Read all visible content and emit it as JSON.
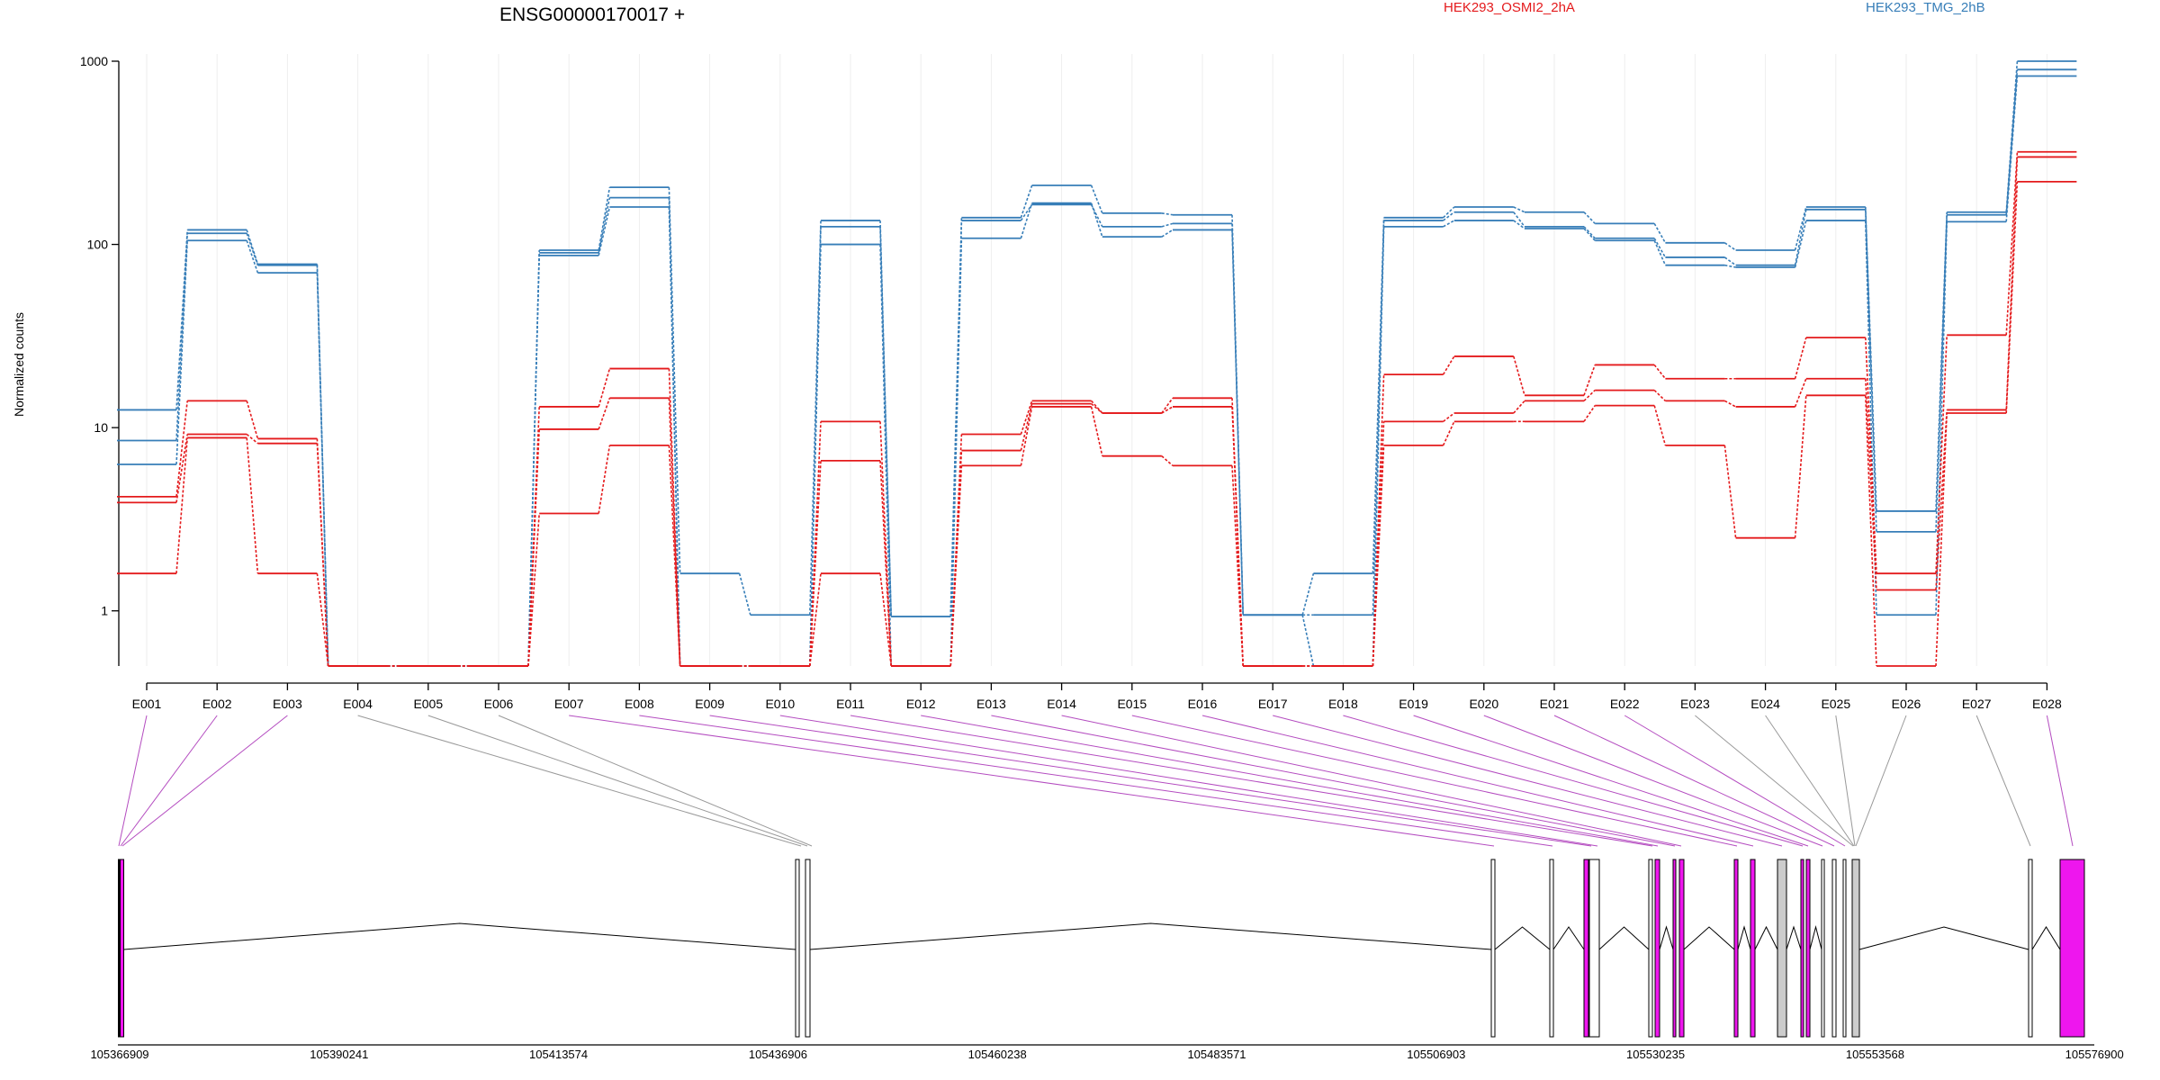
{
  "chart_data": {
    "type": "line",
    "title": "ENSG00000170017 +",
    "ylabel": "Normalized counts",
    "y_scale": "log",
    "ylim": [
      0.5,
      1000
    ],
    "y_ticks": [
      "1",
      "10",
      "100",
      "1000"
    ],
    "categories": [
      "E001",
      "E002",
      "E003",
      "E004",
      "E005",
      "E006",
      "E007",
      "E008",
      "E009",
      "E010",
      "E011",
      "E012",
      "E013",
      "E014",
      "E015",
      "E016",
      "E017",
      "E018",
      "E019",
      "E020",
      "E021",
      "E022",
      "E023",
      "E024",
      "E025",
      "E026",
      "E027",
      "E028"
    ],
    "legend": [
      {
        "name": "HEK293_OSMI2_2hA",
        "color": "#e41a1c"
      },
      {
        "name": "HEK293_TMG_2hB",
        "color": "#377eb8"
      }
    ],
    "series": [
      {
        "group": "HEK293_TMG_2hB",
        "color": "#377eb8",
        "values": [
          12.5,
          120,
          78,
          0.5,
          0.5,
          0.5,
          93,
          205,
          1.6,
          0.95,
          135,
          0.93,
          140,
          210,
          148,
          145,
          0.95,
          1.6,
          140,
          160,
          150,
          130,
          102,
          93,
          160,
          3.5,
          150,
          1000
        ]
      },
      {
        "group": "HEK293_TMG_2hB",
        "color": "#377eb8",
        "values": [
          8.5,
          115,
          77,
          0.5,
          0.5,
          0.5,
          90,
          180,
          0.5,
          0.5,
          125,
          0.93,
          135,
          165,
          125,
          130,
          0.95,
          0.95,
          135,
          150,
          125,
          108,
          85,
          77,
          155,
          2.7,
          145,
          900
        ]
      },
      {
        "group": "HEK293_TMG_2hB",
        "color": "#377eb8",
        "values": [
          6.3,
          105,
          70,
          0.5,
          0.5,
          0.5,
          87,
          160,
          0.5,
          0.5,
          100,
          0.5,
          108,
          168,
          110,
          120,
          0.95,
          0.5,
          125,
          135,
          122,
          105,
          77,
          75,
          135,
          0.95,
          133,
          830
        ]
      },
      {
        "group": "HEK293_OSMI2_2hA",
        "color": "#e41a1c",
        "values": [
          4.2,
          14,
          8.7,
          0.5,
          0.5,
          0.5,
          13,
          21,
          0.5,
          0.5,
          10.8,
          0.5,
          9.2,
          14,
          12,
          14.5,
          0.5,
          0.5,
          19.5,
          24.5,
          15,
          22,
          18.5,
          18.5,
          31,
          1.6,
          32,
          320
        ]
      },
      {
        "group": "HEK293_OSMI2_2hA",
        "color": "#e41a1c",
        "values": [
          3.9,
          9.2,
          8.2,
          0.5,
          0.5,
          0.5,
          9.8,
          14.5,
          0.5,
          0.5,
          6.6,
          0.5,
          7.5,
          13.5,
          12,
          13,
          0.5,
          0.5,
          10.8,
          12,
          14,
          16,
          14,
          13,
          18.5,
          1.3,
          12.5,
          300
        ]
      },
      {
        "group": "HEK293_OSMI2_2hA",
        "color": "#e41a1c",
        "values": [
          1.6,
          8.8,
          1.6,
          0.5,
          0.5,
          0.5,
          3.4,
          8,
          0.5,
          0.5,
          1.6,
          0.5,
          6.2,
          13,
          7,
          6.2,
          0.5,
          0.5,
          8,
          10.8,
          10.8,
          13.2,
          8,
          2.5,
          15,
          0.5,
          12,
          220
        ]
      }
    ],
    "gene_model": {
      "coordinate_ticks": [
        "105366909",
        "105390241",
        "105413574",
        "105436906",
        "105460238",
        "105483571",
        "105506903",
        "105530235",
        "105553568",
        "105576900"
      ],
      "highlight_color": "#ee16ee",
      "highlighted_exons": [
        "E001",
        "E002",
        "E003",
        "E007",
        "E008",
        "E009",
        "E010",
        "E011",
        "E012",
        "E013",
        "E014",
        "E015",
        "E016",
        "E017",
        "E018",
        "E019",
        "E020",
        "E021",
        "E022",
        "E028"
      ]
    }
  }
}
